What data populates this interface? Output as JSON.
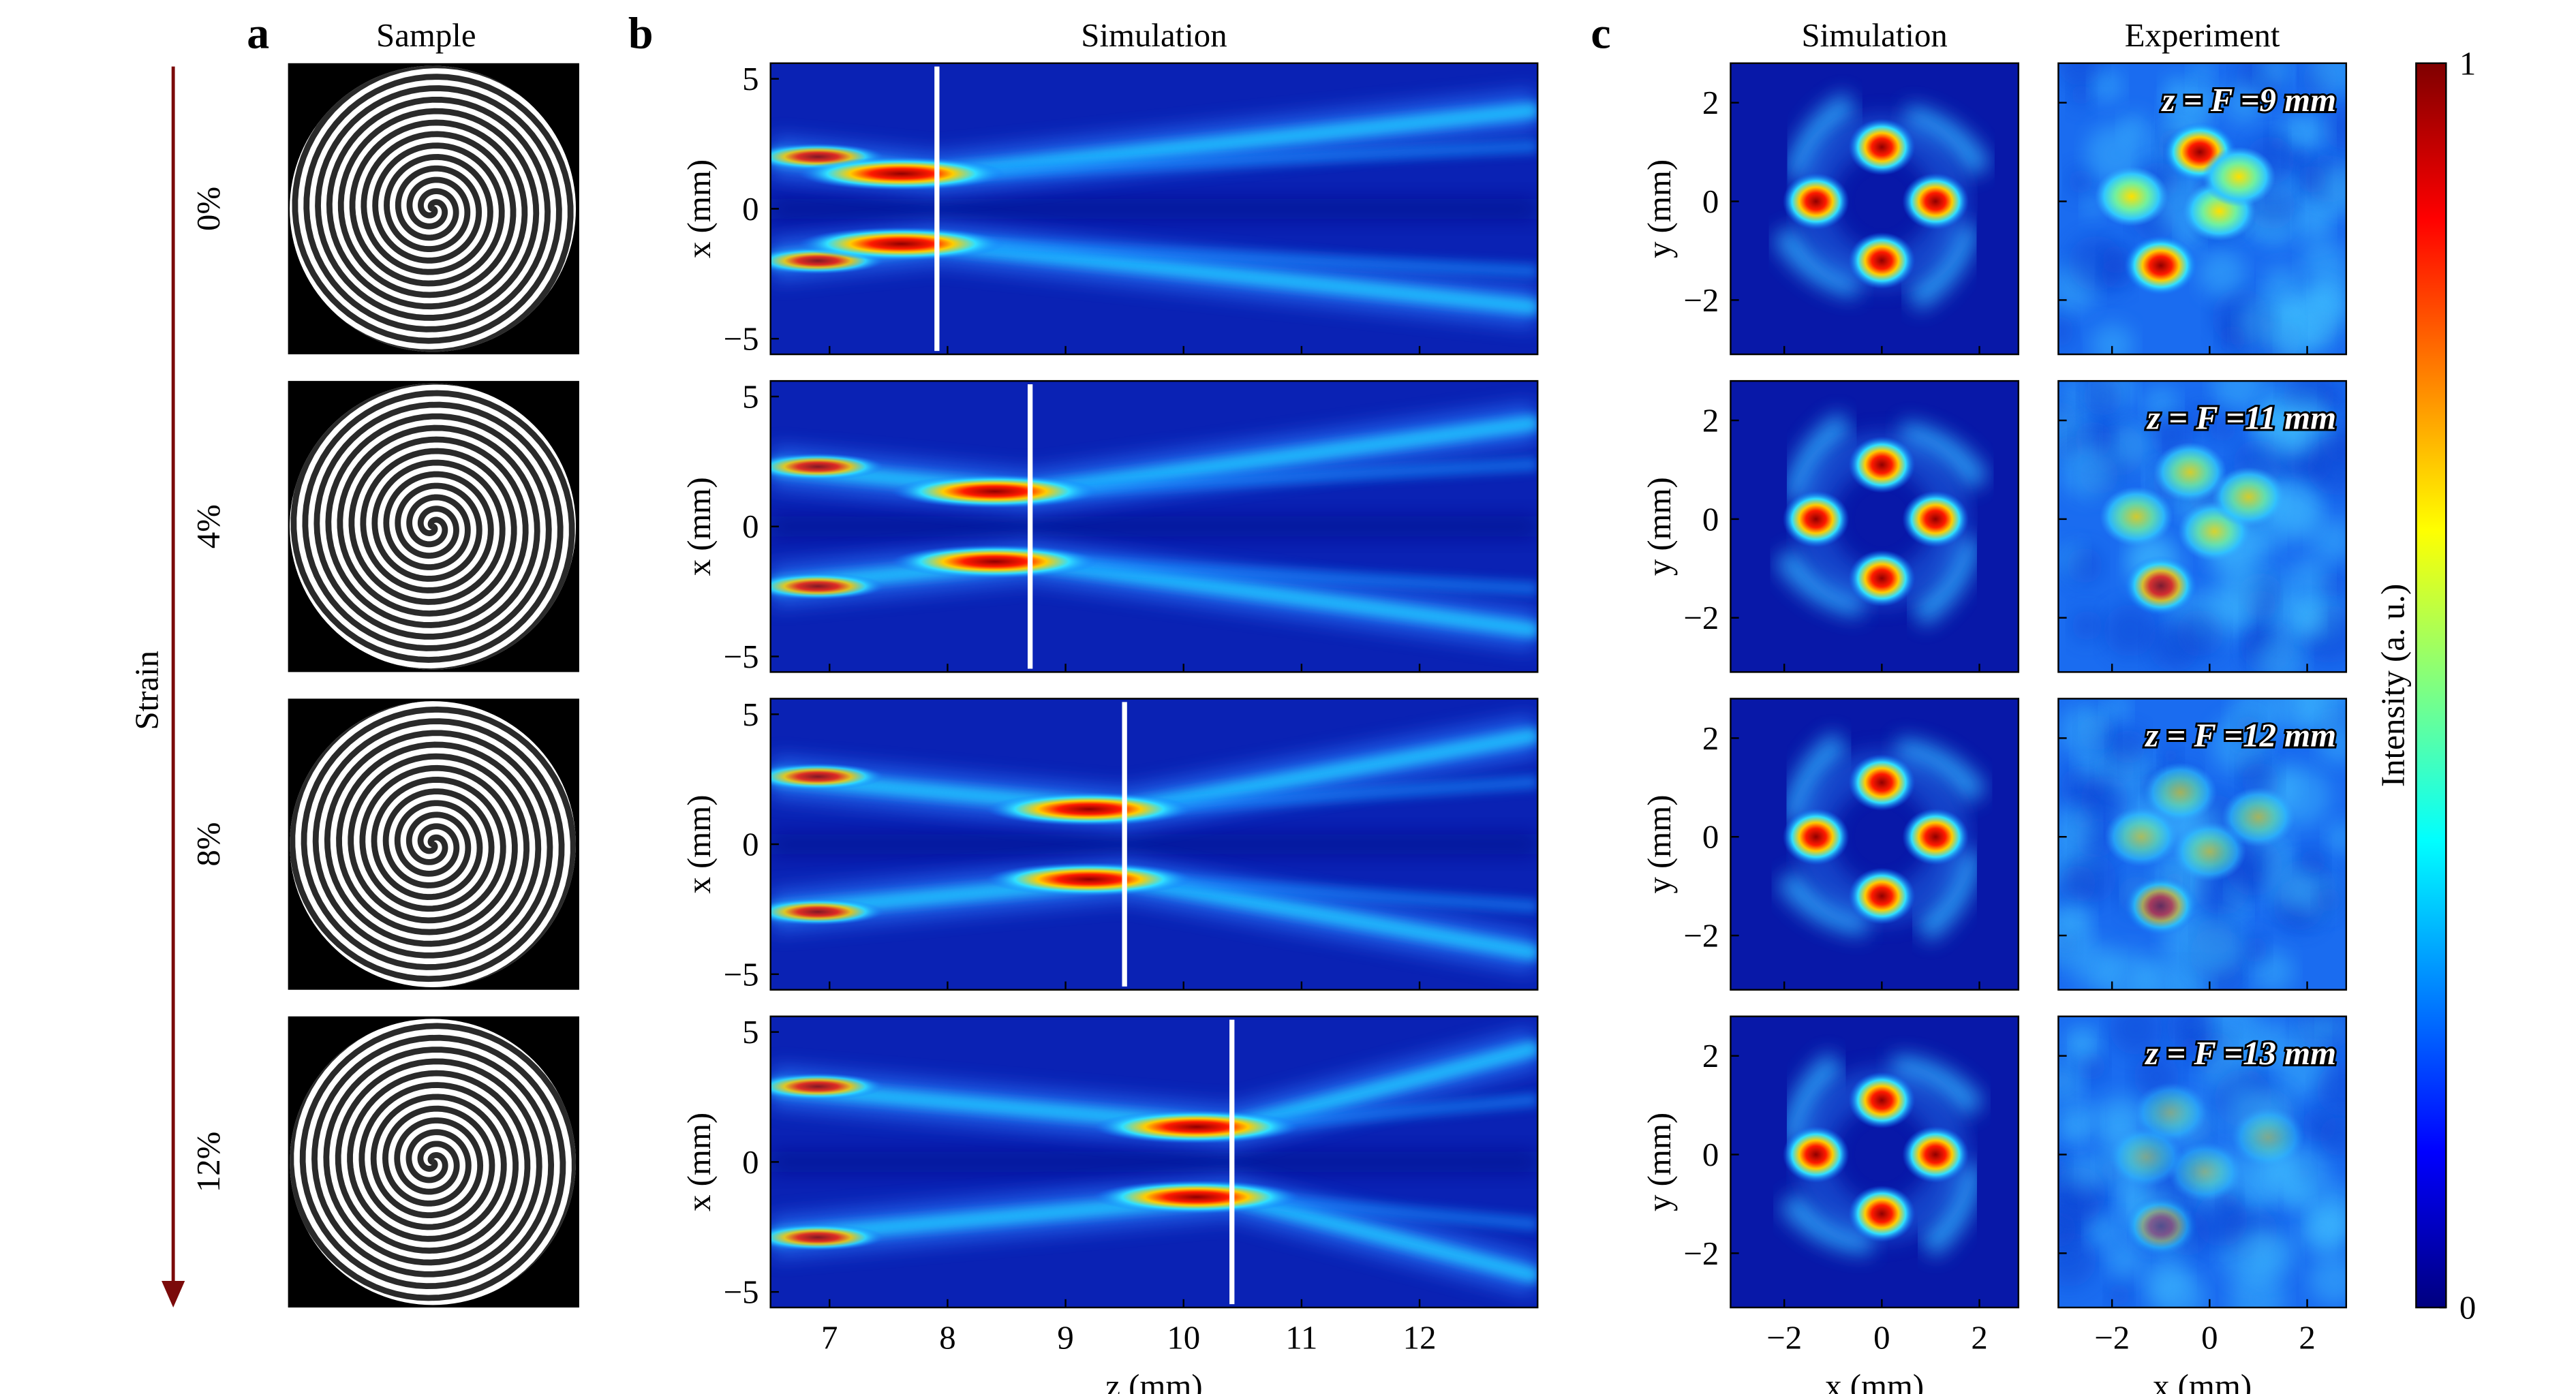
{
  "panel_labels": [
    "a",
    "b",
    "c"
  ],
  "samples": {
    "title": "Sample"
  },
  "strain": {
    "label": "Strain",
    "levels": [
      "0%",
      "4%",
      "8%",
      "12%"
    ]
  },
  "chart_data": [
    {
      "type": "heatmap",
      "title": "Simulation",
      "ylabel": "x (mm)",
      "xlim": [
        6.5,
        13
      ],
      "ylim": [
        -5.6,
        5.6
      ],
      "xticks": [
        7,
        8,
        9,
        10,
        11,
        12
      ],
      "yticks": [
        {
          "value": -5,
          "label": "−5"
        },
        0,
        5
      ],
      "focus_z": 7.91
    },
    {
      "type": "heatmap",
      "ylabel": "x (mm)",
      "xlim": [
        6.5,
        13
      ],
      "ylim": [
        -5.6,
        5.6
      ],
      "xticks": [
        7,
        8,
        9,
        10,
        11,
        12
      ],
      "yticks": [
        {
          "value": -5,
          "label": "−5"
        },
        0,
        5
      ],
      "focus_z": 8.7
    },
    {
      "type": "heatmap",
      "ylabel": "x (mm)",
      "xlim": [
        6.5,
        13
      ],
      "ylim": [
        -5.6,
        5.6
      ],
      "xticks": [
        7,
        8,
        9,
        10,
        11,
        12
      ],
      "yticks": [
        {
          "value": -5,
          "label": "−5"
        },
        0,
        5
      ],
      "focus_z": 9.5
    },
    {
      "type": "heatmap",
      "ylabel": "x (mm)",
      "xlabel": "z (mm)",
      "xlim": [
        6.5,
        13
      ],
      "ylim": [
        -5.6,
        5.6
      ],
      "xticks": [
        7,
        8,
        9,
        10,
        11,
        12
      ],
      "yticks": [
        {
          "value": -5,
          "label": "−5"
        },
        0,
        5
      ],
      "focus_z": 10.41
    },
    {
      "type": "image",
      "title": "Simulation",
      "ylabel": "y (mm)",
      "xlim": [
        -3.1,
        2.8
      ],
      "ylim": [
        -3.1,
        2.8
      ],
      "xticks": [
        {
          "value": -2,
          "label": "−2"
        },
        0,
        2
      ],
      "yticks": [
        {
          "value": -2,
          "label": "−2"
        },
        0,
        2
      ]
    },
    {
      "type": "image",
      "ylabel": "y (mm)",
      "xlim": [
        -3.1,
        2.8
      ],
      "ylim": [
        -3.1,
        2.8
      ],
      "xticks": [
        {
          "value": -2,
          "label": "−2"
        },
        0,
        2
      ],
      "yticks": [
        {
          "value": -2,
          "label": "−2"
        },
        0,
        2
      ]
    },
    {
      "type": "image",
      "ylabel": "y (mm)",
      "xlim": [
        -3.1,
        2.8
      ],
      "ylim": [
        -3.1,
        2.8
      ],
      "xticks": [
        {
          "value": -2,
          "label": "−2"
        },
        0,
        2
      ],
      "yticks": [
        {
          "value": -2,
          "label": "−2"
        },
        0,
        2
      ]
    },
    {
      "type": "image",
      "ylabel": "y (mm)",
      "xlabel": "x (mm)",
      "xlim": [
        -3.1,
        2.8
      ],
      "ylim": [
        -3.1,
        2.8
      ],
      "xticks": [
        {
          "value": -2,
          "label": "−2"
        },
        0,
        2
      ],
      "yticks": [
        {
          "value": -2,
          "label": "−2"
        },
        0,
        2
      ]
    },
    {
      "type": "experiment",
      "title": "Experiment",
      "annotation": "z = F =9 mm",
      "xlim": [
        -3.1,
        2.8
      ],
      "ylim": [
        -3.1,
        2.8
      ],
      "xticks": [
        {
          "value": -2,
          "label": "−2"
        },
        0,
        2
      ],
      "yticks": [
        {
          "value": -2,
          "label": "−2"
        },
        0,
        2
      ]
    },
    {
      "type": "experiment",
      "annotation": "z = F =11 mm",
      "xlim": [
        -3.1,
        2.8
      ],
      "ylim": [
        -3.1,
        2.8
      ],
      "xticks": [
        {
          "value": -2,
          "label": "−2"
        },
        0,
        2
      ],
      "yticks": [
        {
          "value": -2,
          "label": "−2"
        },
        0,
        2
      ]
    },
    {
      "type": "experiment",
      "annotation": "z = F =12 mm",
      "xlim": [
        -3.1,
        2.8
      ],
      "ylim": [
        -3.1,
        2.8
      ],
      "xticks": [
        {
          "value": -2,
          "label": "−2"
        },
        0,
        2
      ],
      "yticks": [
        {
          "value": -2,
          "label": "−2"
        },
        0,
        2
      ]
    },
    {
      "type": "experiment",
      "annotation": "z = F =13 mm",
      "xlabel": "x (mm)",
      "xlim": [
        -3.1,
        2.8
      ],
      "ylim": [
        -3.1,
        2.8
      ],
      "xticks": [
        {
          "value": -2,
          "label": "−2"
        },
        0,
        2
      ],
      "yticks": [
        {
          "value": -2,
          "label": "−2"
        },
        0,
        2
      ]
    },
    {
      "type": "colorbar",
      "label": "Intensity (a. u.)",
      "colormap": "jet",
      "ylim": [
        0,
        1
      ],
      "yticks": [
        0,
        1
      ]
    }
  ]
}
